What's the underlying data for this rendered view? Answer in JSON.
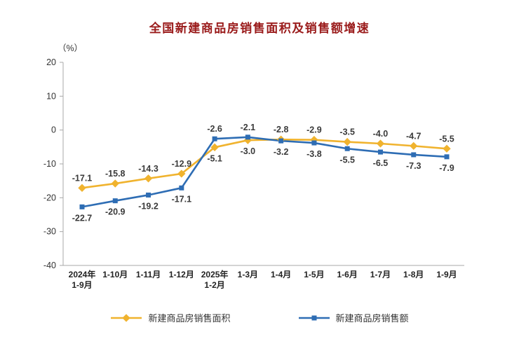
{
  "chart_data": {
    "type": "line",
    "title": "全国新建商品房销售面积及销售额增速",
    "unit_label": "（%）",
    "title_color": "#9a1b1b",
    "categories": [
      "2024年\n1-9月",
      "1-10月",
      "1-11月",
      "1-12月",
      "2025年\n1-2月",
      "1-3月",
      "1-4月",
      "1-5月",
      "1-6月",
      "1-7月",
      "1-8月",
      "1-9月"
    ],
    "series": [
      {
        "name": "新建商品房销售面积",
        "color": "#f0b32e",
        "marker": "diamond",
        "values": [
          -17.1,
          -15.8,
          -14.3,
          -12.9,
          -5.1,
          -3.0,
          -2.8,
          -2.9,
          -3.5,
          -4.0,
          -4.7,
          -5.5
        ]
      },
      {
        "name": "新建商品房销售额",
        "color": "#2e6db4",
        "marker": "square",
        "values": [
          -22.7,
          -20.9,
          -19.2,
          -17.1,
          -2.6,
          -2.1,
          -3.2,
          -3.8,
          -5.5,
          -6.5,
          -7.3,
          -7.9
        ]
      }
    ],
    "ylim": [
      -40,
      20
    ],
    "yticks": [
      20,
      10,
      0,
      -10,
      -20,
      -30,
      -40
    ],
    "grid": false,
    "legend_position": "bottom"
  }
}
